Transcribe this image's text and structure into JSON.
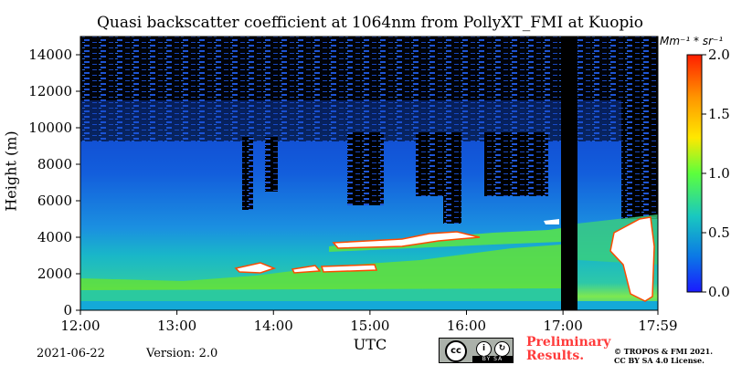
{
  "chart_data": {
    "type": "heatmap",
    "title": "Quasi backscatter coefficient at 1064nm from PollyXT_FMI at Kuopio",
    "xlabel": "UTC",
    "ylabel": "Height (m)",
    "x_range": [
      "12:00",
      "17:59"
    ],
    "x_ticks": [
      "12:00",
      "13:00",
      "14:00",
      "15:00",
      "16:00",
      "17:00",
      "17:59"
    ],
    "ylim": [
      0,
      15000
    ],
    "y_ticks": [
      0,
      2000,
      4000,
      6000,
      8000,
      10000,
      12000,
      14000
    ],
    "colorbar": {
      "unit": "Mm⁻¹ * sr⁻¹",
      "range": [
        0.0,
        2.0
      ],
      "ticks": [
        "0.0",
        "0.5",
        "1.0",
        "1.5",
        "2.0"
      ],
      "colormap": [
        "#1a1aff",
        "#0b78e6",
        "#19c8c0",
        "#5cff3c",
        "#ffe800",
        "#ff9600",
        "#ff1e00"
      ]
    }
  },
  "footer": {
    "date": "2021-06-22",
    "version": "Version: 2.0",
    "preliminary_line1": "Preliminary",
    "preliminary_line2": "Results.",
    "copyright_line1": "© TROPOS & FMI 2021.",
    "copyright_line2": "CC BY SA 4.0 License.",
    "license_badges": [
      "cc-icon",
      "by-icon",
      "sa-icon"
    ],
    "license_strip": "BY SA"
  }
}
